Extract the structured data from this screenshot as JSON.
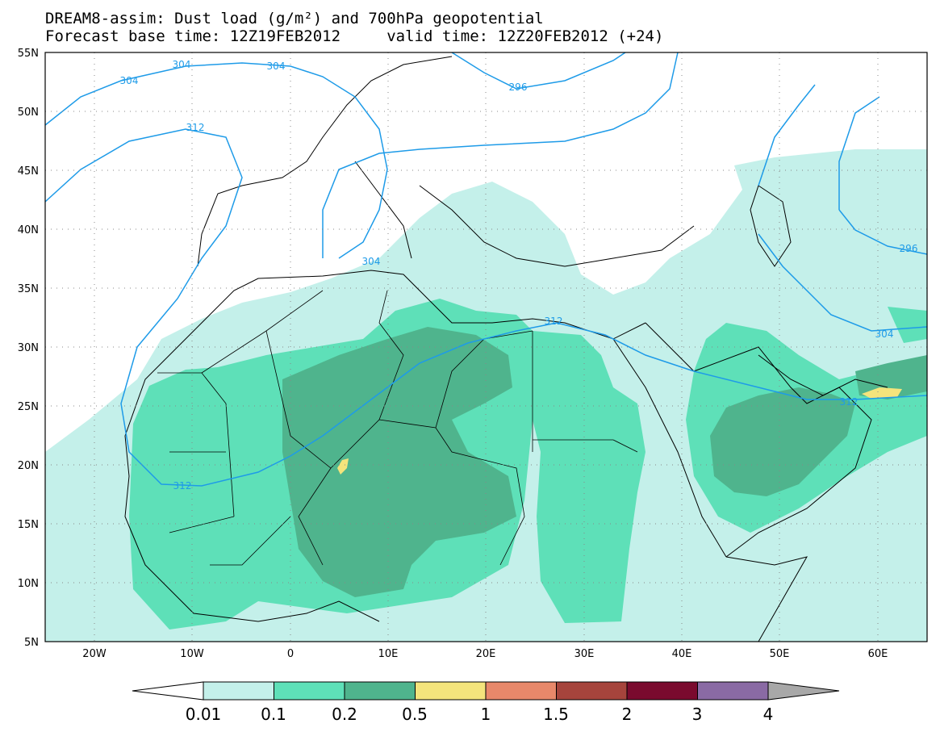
{
  "title": {
    "line1": "DREAM8-assim: Dust load (g/m²) and 700hPa geopotential",
    "line2": "Forecast base time: 12Z19FEB2012     valid time: 12Z20FEB2012 (+24)"
  },
  "axes": {
    "lat_labels": [
      "55N",
      "50N",
      "45N",
      "40N",
      "35N",
      "30N",
      "25N",
      "20N",
      "15N",
      "10N",
      "5N"
    ],
    "lon_labels": [
      "20W",
      "10W",
      "0",
      "10E",
      "20E",
      "30E",
      "40E",
      "50E",
      "60E"
    ]
  },
  "contour_labels": [
    "304",
    "304",
    "304",
    "296",
    "312",
    "304",
    "296",
    "312",
    "312",
    "304",
    "312"
  ],
  "colorbar": {
    "labels": [
      "0.01",
      "0.1",
      "0.2",
      "0.5",
      "1",
      "1.5",
      "2",
      "3",
      "4"
    ],
    "colors": [
      "#c4f0ea",
      "#5ee0b8",
      "#4fb48d",
      "#f4e47c",
      "#e8886a",
      "#a6443c",
      "#7a0a2e",
      "#8a6aa4",
      "#a8a8a8"
    ]
  },
  "colors": {
    "contour": "#1e9be8",
    "land_line": "#000000",
    "background": "#ffffff"
  }
}
